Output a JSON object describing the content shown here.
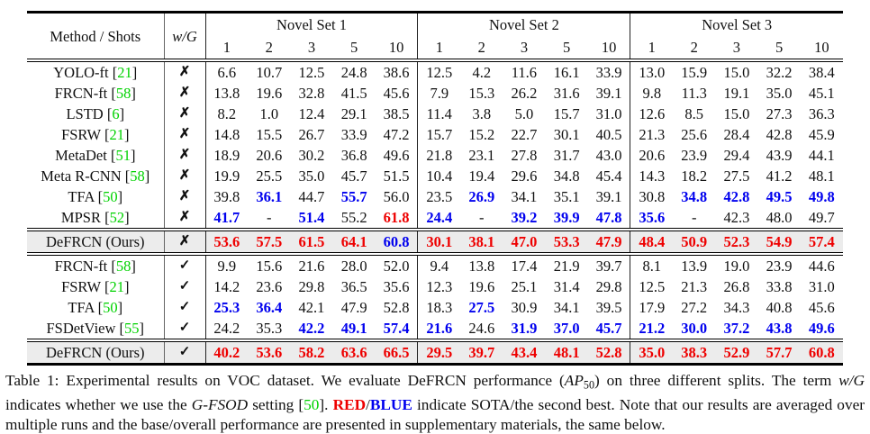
{
  "colors": {
    "sota_red": "#ee0000",
    "second_best_blue": "#0000ee",
    "citation_green": "#00d200",
    "highlight_row_bg": "#ececec"
  },
  "table": {
    "header": {
      "method_label": "Method / Shots",
      "wg_label": "w/G",
      "groups": [
        {
          "label": "Novel Set 1",
          "shots": [
            "1",
            "2",
            "3",
            "5",
            "10"
          ]
        },
        {
          "label": "Novel Set 2",
          "shots": [
            "1",
            "2",
            "3",
            "5",
            "10"
          ]
        },
        {
          "label": "Novel Set 3",
          "shots": [
            "1",
            "2",
            "3",
            "5",
            "10"
          ]
        }
      ]
    },
    "symbols": {
      "with_g": "✓",
      "without_g": "✗"
    },
    "blocks": [
      {
        "rows": [
          {
            "method": "YOLO-ft",
            "ref": "21",
            "wg": "x",
            "cells": [
              "6.6",
              "10.7",
              "12.5",
              "24.8",
              "38.6",
              "12.5",
              "4.2",
              "11.6",
              "16.1",
              "33.9",
              "13.0",
              "15.9",
              "15.0",
              "32.2",
              "38.4"
            ]
          },
          {
            "method": "FRCN-ft",
            "ref": "58",
            "wg": "x",
            "cells": [
              "13.8",
              "19.6",
              "32.8",
              "41.5",
              "45.6",
              "7.9",
              "15.3",
              "26.2",
              "31.6",
              "39.1",
              "9.8",
              "11.3",
              "19.1",
              "35.0",
              "45.1"
            ]
          },
          {
            "method": "LSTD",
            "ref": "6",
            "wg": "x",
            "cells": [
              "8.2",
              "1.0",
              "12.4",
              "29.1",
              "38.5",
              "11.4",
              "3.8",
              "5.0",
              "15.7",
              "31.0",
              "12.6",
              "8.5",
              "15.0",
              "27.3",
              "36.3"
            ]
          },
          {
            "method": "FSRW",
            "ref": "21",
            "wg": "x",
            "cells": [
              "14.8",
              "15.5",
              "26.7",
              "33.9",
              "47.2",
              "15.7",
              "15.2",
              "22.7",
              "30.1",
              "40.5",
              "21.3",
              "25.6",
              "28.4",
              "42.8",
              "45.9"
            ]
          },
          {
            "method": "MetaDet",
            "ref": "51",
            "wg": "x",
            "cells": [
              "18.9",
              "20.6",
              "30.2",
              "36.8",
              "49.6",
              "21.8",
              "23.1",
              "27.8",
              "31.7",
              "43.0",
              "20.6",
              "23.9",
              "29.4",
              "43.9",
              "44.1"
            ]
          },
          {
            "method": "Meta R-CNN",
            "ref": "58",
            "wg": "x",
            "cells": [
              "19.9",
              "25.5",
              "35.0",
              "45.7",
              "51.5",
              "10.4",
              "19.4",
              "29.6",
              "34.8",
              "45.4",
              "14.3",
              "18.2",
              "27.5",
              "41.2",
              "48.1"
            ]
          },
          {
            "method": "TFA",
            "ref": "50",
            "wg": "x",
            "cells": [
              "39.8",
              {
                "v": "36.1",
                "c": "blue"
              },
              "44.7",
              {
                "v": "55.7",
                "c": "blue"
              },
              "56.0",
              "23.5",
              {
                "v": "26.9",
                "c": "blue"
              },
              "34.1",
              "35.1",
              "39.1",
              "30.8",
              {
                "v": "34.8",
                "c": "blue"
              },
              {
                "v": "42.8",
                "c": "blue"
              },
              {
                "v": "49.5",
                "c": "blue"
              },
              {
                "v": "49.8",
                "c": "blue"
              }
            ]
          },
          {
            "method": "MPSR",
            "ref": "52",
            "wg": "x",
            "cells": [
              {
                "v": "41.7",
                "c": "blue"
              },
              "-",
              {
                "v": "51.4",
                "c": "blue"
              },
              "55.2",
              {
                "v": "61.8",
                "c": "red"
              },
              {
                "v": "24.4",
                "c": "blue"
              },
              "-",
              {
                "v": "39.2",
                "c": "blue"
              },
              {
                "v": "39.9",
                "c": "blue"
              },
              {
                "v": "47.8",
                "c": "blue"
              },
              {
                "v": "35.6",
                "c": "blue"
              },
              "-",
              "42.3",
              "48.0",
              "49.7"
            ]
          },
          {
            "method": "DeFRCN (Ours)",
            "ref": null,
            "wg": "x",
            "highlight": true,
            "cells": [
              {
                "v": "53.6",
                "c": "red"
              },
              {
                "v": "57.5",
                "c": "red"
              },
              {
                "v": "61.5",
                "c": "red"
              },
              {
                "v": "64.1",
                "c": "red"
              },
              {
                "v": "60.8",
                "c": "blue"
              },
              {
                "v": "30.1",
                "c": "red"
              },
              {
                "v": "38.1",
                "c": "red"
              },
              {
                "v": "47.0",
                "c": "red"
              },
              {
                "v": "53.3",
                "c": "red"
              },
              {
                "v": "47.9",
                "c": "red"
              },
              {
                "v": "48.4",
                "c": "red"
              },
              {
                "v": "50.9",
                "c": "red"
              },
              {
                "v": "52.3",
                "c": "red"
              },
              {
                "v": "54.9",
                "c": "red"
              },
              {
                "v": "57.4",
                "c": "red"
              }
            ]
          }
        ]
      },
      {
        "rows": [
          {
            "method": "FRCN-ft",
            "ref": "58",
            "wg": "check",
            "cells": [
              "9.9",
              "15.6",
              "21.6",
              "28.0",
              "52.0",
              "9.4",
              "13.8",
              "17.4",
              "21.9",
              "39.7",
              "8.1",
              "13.9",
              "19.0",
              "23.9",
              "44.6"
            ]
          },
          {
            "method": "FSRW",
            "ref": "21",
            "wg": "check",
            "cells": [
              "14.2",
              "23.6",
              "29.8",
              "36.5",
              "35.6",
              "12.3",
              "19.6",
              "25.1",
              "31.4",
              "29.8",
              "12.5",
              "21.3",
              "26.8",
              "33.8",
              "31.0"
            ]
          },
          {
            "method": "TFA",
            "ref": "50",
            "wg": "check",
            "cells": [
              {
                "v": "25.3",
                "c": "blue"
              },
              {
                "v": "36.4",
                "c": "blue"
              },
              "42.1",
              "47.9",
              "52.8",
              "18.3",
              {
                "v": "27.5",
                "c": "blue"
              },
              "30.9",
              "34.1",
              "39.5",
              "17.9",
              "27.2",
              "34.3",
              "40.8",
              "45.6"
            ]
          },
          {
            "method": "FSDetView",
            "ref": "55",
            "wg": "check",
            "cells": [
              "24.2",
              "35.3",
              {
                "v": "42.2",
                "c": "blue"
              },
              {
                "v": "49.1",
                "c": "blue"
              },
              {
                "v": "57.4",
                "c": "blue"
              },
              {
                "v": "21.6",
                "c": "blue"
              },
              "24.6",
              {
                "v": "31.9",
                "c": "blue"
              },
              {
                "v": "37.0",
                "c": "blue"
              },
              {
                "v": "45.7",
                "c": "blue"
              },
              {
                "v": "21.2",
                "c": "blue"
              },
              {
                "v": "30.0",
                "c": "blue"
              },
              {
                "v": "37.2",
                "c": "blue"
              },
              {
                "v": "43.8",
                "c": "blue"
              },
              {
                "v": "49.6",
                "c": "blue"
              }
            ]
          },
          {
            "method": "DeFRCN (Ours)",
            "ref": null,
            "wg": "check",
            "highlight": true,
            "cells": [
              {
                "v": "40.2",
                "c": "red"
              },
              {
                "v": "53.6",
                "c": "red"
              },
              {
                "v": "58.2",
                "c": "red"
              },
              {
                "v": "63.6",
                "c": "red"
              },
              {
                "v": "66.5",
                "c": "red"
              },
              {
                "v": "29.5",
                "c": "red"
              },
              {
                "v": "39.7",
                "c": "red"
              },
              {
                "v": "43.4",
                "c": "red"
              },
              {
                "v": "48.1",
                "c": "red"
              },
              {
                "v": "52.8",
                "c": "red"
              },
              {
                "v": "35.0",
                "c": "red"
              },
              {
                "v": "38.3",
                "c": "red"
              },
              {
                "v": "52.9",
                "c": "red"
              },
              {
                "v": "57.7",
                "c": "red"
              },
              {
                "v": "60.8",
                "c": "red"
              }
            ]
          }
        ]
      }
    ]
  },
  "caption": {
    "segments": [
      {
        "t": "Table 1: Experimental results on VOC dataset. We evaluate DeFRCN performance (",
        "name": "caption-text"
      },
      {
        "t": "AP",
        "style": "italic",
        "name": "caption-ap-metric"
      },
      {
        "t": "50",
        "style": "sub",
        "name": "caption-ap-subscript"
      },
      {
        "t": ") on three different splits. The term ",
        "name": "caption-text"
      },
      {
        "t": "w/G",
        "style": "italic",
        "name": "caption-wg-term"
      },
      {
        "t": " indicates whether we use the ",
        "name": "caption-text"
      },
      {
        "t": "G-FSOD",
        "style": "italic",
        "name": "caption-gfsod-term"
      },
      {
        "t": " setting [",
        "name": "caption-text"
      },
      {
        "t": "50",
        "style": "green",
        "name": "citation-ref"
      },
      {
        "t": "]. ",
        "name": "caption-text"
      },
      {
        "t": "RED",
        "style": "red-bold",
        "name": "caption-red-label"
      },
      {
        "t": "/",
        "name": "caption-text"
      },
      {
        "t": "BLUE",
        "style": "blue-bold",
        "name": "caption-blue-label"
      },
      {
        "t": " indicate SOTA/the second best. Note that our results are averaged over multiple runs and the base/overall performance are presented in supplementary materials, the same below.",
        "name": "caption-text"
      }
    ]
  }
}
